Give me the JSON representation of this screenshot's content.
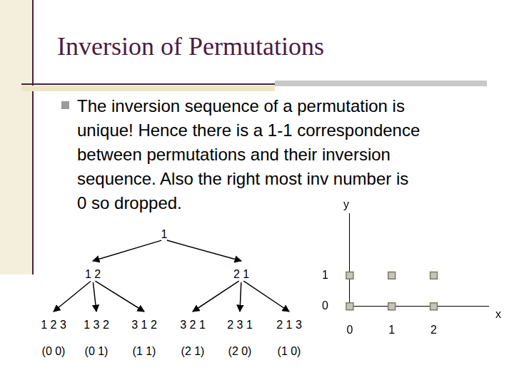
{
  "slide": {
    "title": "Inversion of Permutations",
    "bullet": [
      "The inversion sequence of a permutation is",
      "unique! Hence there is a 1-1 correspondence",
      "between permutations and their inversion",
      "sequence.  Also the right most inv number is",
      "0 so dropped."
    ]
  },
  "tree": {
    "nodes": [
      {
        "label": "1",
        "parent": null
      },
      {
        "label": "1 2",
        "parent": 0
      },
      {
        "label": "2 1",
        "parent": 0
      },
      {
        "label": "1 2 3",
        "parent": 1,
        "inversion": "(0 0)"
      },
      {
        "label": "1 3 2",
        "parent": 1,
        "inversion": "(0 1)"
      },
      {
        "label": "3 1 2",
        "parent": 1,
        "inversion": "(1 1)"
      },
      {
        "label": "3 2 1",
        "parent": 2,
        "inversion": "(2 1)"
      },
      {
        "label": "2 3 1",
        "parent": 2,
        "inversion": "(2 0)"
      },
      {
        "label": "2 1 3",
        "parent": 2,
        "inversion": "(1 0)"
      }
    ]
  },
  "chart_data": {
    "type": "scatter",
    "x_label": "x",
    "y_label": "y",
    "x": [
      0,
      1,
      2,
      0,
      1,
      2
    ],
    "values": [
      1,
      1,
      1,
      0,
      0,
      0
    ],
    "color": "#c4c4c4",
    "marker": "square",
    "xlim": [
      0,
      3.3
    ],
    "ylim": [
      0,
      3
    ],
    "xticks": [
      0,
      1,
      2
    ],
    "yticks": [
      0,
      1
    ],
    "grid": false
  }
}
